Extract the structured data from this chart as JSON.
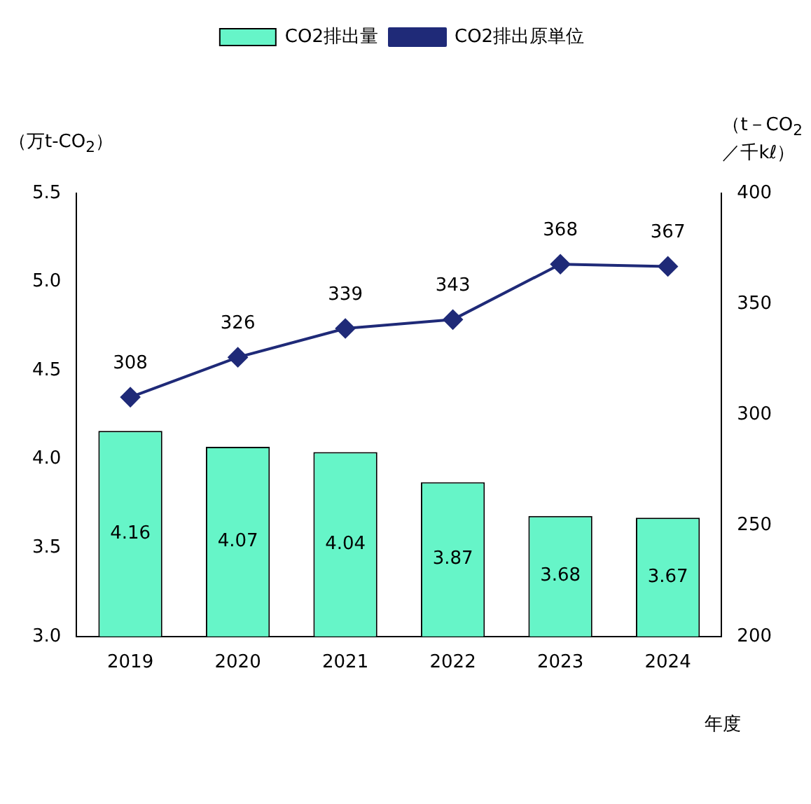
{
  "chart_data": {
    "type": "bar",
    "categories": [
      "2019",
      "2020",
      "2021",
      "2022",
      "2023",
      "2024"
    ],
    "series": [
      {
        "name": "CO2排出量",
        "color": "#66f5c8",
        "values": [
          4.16,
          4.07,
          4.04,
          3.87,
          3.68,
          3.67
        ]
      },
      {
        "name": "CO2排出原単位",
        "type": "line",
        "axis": "y2",
        "color": "#1f2a78",
        "values": [
          308,
          326,
          339,
          343,
          368,
          367
        ]
      }
    ],
    "ylabel": "（万t-CO$_{2}$）",
    "y2label": "（t－CO$_{2}$\n／千kℓ）",
    "xlabel": "年度",
    "ylim": [
      3.0,
      5.5
    ],
    "yticks": [
      {
        "value": 3.0,
        "label": "3.0"
      },
      {
        "value": 3.5,
        "label": "3.5"
      },
      {
        "value": 4.0,
        "label": "4.0"
      },
      {
        "value": 4.5,
        "label": "4.5"
      },
      {
        "value": 5.0,
        "label": "5.0"
      },
      {
        "value": 5.5,
        "label": "5.5"
      }
    ],
    "y2lim": [
      200,
      400
    ],
    "y2ticks": [
      200,
      250,
      300,
      350,
      400
    ],
    "grid": false,
    "legend": "top",
    "marker": "diamond",
    "line_style": "solid",
    "data_labels": true
  }
}
